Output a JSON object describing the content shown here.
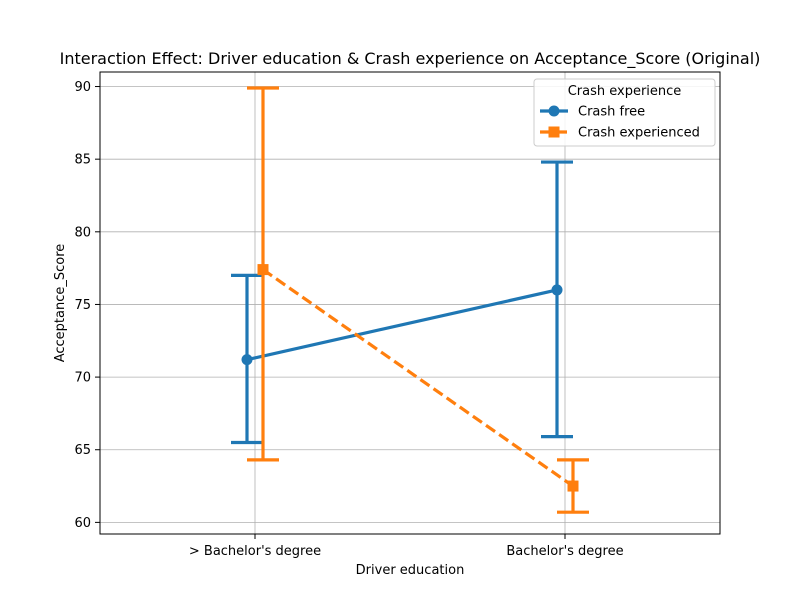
{
  "chart_data": {
    "type": "line",
    "title": "Interaction Effect: Driver education & Crash experience on Acceptance_Score (Original)",
    "xlabel": "Driver education",
    "ylabel": "Acceptance_Score",
    "categories": [
      "> Bachelor's degree",
      "Bachelor's degree"
    ],
    "ylim": [
      59.2,
      91.0
    ],
    "yticks": [
      60,
      65,
      70,
      75,
      80,
      85,
      90
    ],
    "grid": true,
    "legend": {
      "title": "Crash experience",
      "placement": "top-right"
    },
    "series": [
      {
        "name": "Crash free",
        "values": [
          71.2,
          76.0
        ],
        "ci_low": [
          65.5,
          65.9
        ],
        "ci_high": [
          77.0,
          84.8
        ],
        "color": "#1f77b4",
        "marker": "circle",
        "linestyle": "solid"
      },
      {
        "name": "Crash experienced",
        "values": [
          77.4,
          62.5
        ],
        "ci_low": [
          64.3,
          60.7
        ],
        "ci_high": [
          89.9,
          64.3
        ],
        "color": "#ff7f0e",
        "marker": "square",
        "linestyle": "dashed"
      }
    ]
  }
}
